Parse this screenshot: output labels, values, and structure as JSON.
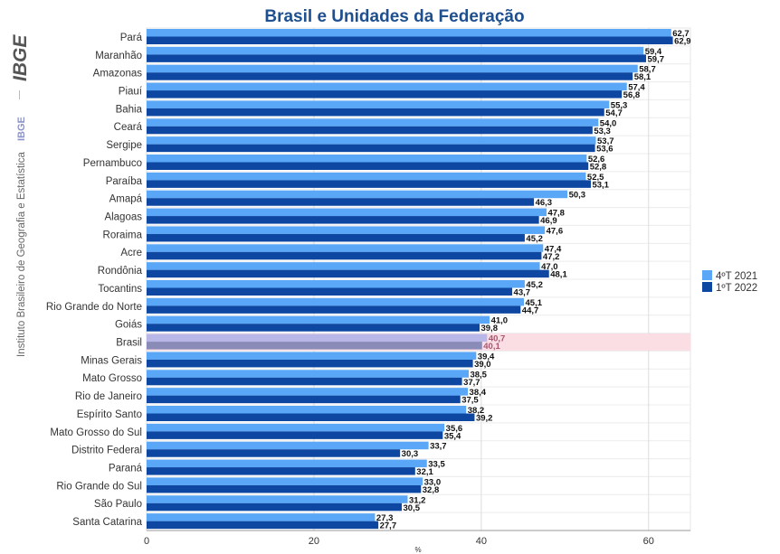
{
  "sidebar": {
    "logo_text": "IBGE",
    "short_name": "IBGE",
    "institution": "Instituto Brasileiro de Geografia e Estatística"
  },
  "chart_data": {
    "type": "bar",
    "orientation": "horizontal",
    "title": "Brasil e Unidades da Federação",
    "xlabel": "%",
    "xlim": [
      0,
      65
    ],
    "xticks": [
      0,
      20,
      40,
      60
    ],
    "grid": true,
    "legend_position": "right",
    "highlight_category": "Brasil",
    "categories": [
      "Pará",
      "Maranhão",
      "Amazonas",
      "Piauí",
      "Bahia",
      "Ceará",
      "Sergipe",
      "Pernambuco",
      "Paraíba",
      "Amapá",
      "Alagoas",
      "Roraima",
      "Acre",
      "Rondônia",
      "Tocantins",
      "Rio Grande do Norte",
      "Goiás",
      "Brasil",
      "Minas Gerais",
      "Mato Grosso",
      "Rio de Janeiro",
      "Espírito Santo",
      "Mato Grosso do Sul",
      "Distrito Federal",
      "Paraná",
      "Rio Grande do Sul",
      "São Paulo",
      "Santa Catarina"
    ],
    "series": [
      {
        "name": "4ºT 2021",
        "color": "#59a7f6",
        "highlight_color": "#b9b7e8",
        "values": [
          62.7,
          59.4,
          58.7,
          57.4,
          55.3,
          54.0,
          53.7,
          52.6,
          52.5,
          50.3,
          47.8,
          47.6,
          47.4,
          47.0,
          45.2,
          45.1,
          41.0,
          40.7,
          39.4,
          38.5,
          38.4,
          38.2,
          35.6,
          33.7,
          33.5,
          33.0,
          31.2,
          27.3
        ],
        "labels": [
          "62,7",
          "59,4",
          "58,7",
          "57,4",
          "55,3",
          "54,0",
          "53,7",
          "52,6",
          "52,5",
          "50,3",
          "47,8",
          "47,6",
          "47,4",
          "47,0",
          "45,2",
          "45,1",
          "41,0",
          "40,7",
          "39,4",
          "38,5",
          "38,4",
          "38,2",
          "35,6",
          "33,7",
          "33,5",
          "33,0",
          "31,2",
          "27,3"
        ]
      },
      {
        "name": "1ºT 2022",
        "color": "#0d47a1",
        "highlight_color": "#8a8cb7",
        "values": [
          62.9,
          59.7,
          58.1,
          56.8,
          54.7,
          53.3,
          53.6,
          52.8,
          53.1,
          46.3,
          46.9,
          45.2,
          47.2,
          48.1,
          43.7,
          44.7,
          39.8,
          40.1,
          39.0,
          37.7,
          37.5,
          39.2,
          35.4,
          30.3,
          32.1,
          32.8,
          30.5,
          27.7
        ],
        "labels": [
          "62,9",
          "59,7",
          "58,1",
          "56,8",
          "54,7",
          "53,3",
          "53,6",
          "52,8",
          "53,1",
          "46,3",
          "46,9",
          "45,2",
          "47,2",
          "48,1",
          "43,7",
          "44,7",
          "39,8",
          "40,1",
          "39,0",
          "37,7",
          "37,5",
          "39,2",
          "35,4",
          "30,3",
          "32,1",
          "32,8",
          "30,5",
          "27,7"
        ]
      }
    ]
  }
}
